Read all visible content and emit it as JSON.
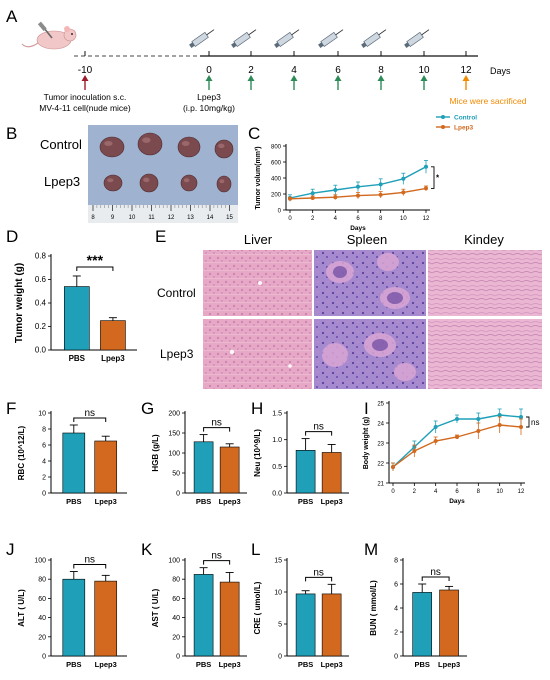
{
  "figure": {
    "colors": {
      "control": "#1f9fb8",
      "lpep3": "#d2691e",
      "pbs_bar": "#1f9fb8",
      "lpep3_bar": "#d2691e",
      "arrow_red": "#9c1c2b",
      "arrow_green": "#2e8b57",
      "arrow_orange": "#f28a00"
    },
    "panels": {
      "A": {
        "letter": "A",
        "days_label": "Days",
        "ticks": [
          "-10",
          "0",
          "2",
          "4",
          "6",
          "8",
          "10",
          "12"
        ],
        "inoculation_note_1": "Tumor inoculation s.c.",
        "inoculation_note_2": "MV-4-11 cell(nude mice)",
        "treatment_note_1": "Lpep3",
        "treatment_note_2": "(i.p. 10mg/kg)",
        "sacrifice_note": "Mice were sacrificed"
      },
      "B": {
        "letter": "B",
        "row1": "Control",
        "row2": "Lpep3",
        "ruler_ticks": [
          "8",
          "9",
          "10",
          "11",
          "12",
          "13",
          "14",
          "15"
        ]
      },
      "C": {
        "letter": "C"
      },
      "D": {
        "letter": "D"
      },
      "E": {
        "letter": "E",
        "col1": "Liver",
        "col2": "Spleen",
        "col3": "Kindey",
        "row1": "Control",
        "row2": "Lpep3"
      },
      "F": {
        "letter": "F"
      },
      "G": {
        "letter": "G"
      },
      "H": {
        "letter": "H"
      },
      "I": {
        "letter": "I"
      },
      "J": {
        "letter": "J"
      },
      "K": {
        "letter": "K"
      },
      "L": {
        "letter": "L"
      },
      "M": {
        "letter": "M"
      }
    }
  },
  "chart_data": [
    {
      "id": "C",
      "type": "line",
      "ylabel": "Tumor volum(mm³)",
      "xlabel": "Days",
      "x": [
        0,
        2,
        4,
        6,
        8,
        10,
        12
      ],
      "ylim": [
        0,
        800
      ],
      "yticks": [
        0,
        200,
        400,
        600,
        800
      ],
      "xticks": [
        0,
        2,
        4,
        6,
        8,
        10,
        12
      ],
      "series": [
        {
          "name": "Control",
          "values": [
            150,
            210,
            250,
            290,
            320,
            390,
            540
          ],
          "err": [
            40,
            50,
            60,
            60,
            70,
            70,
            80
          ]
        },
        {
          "name": "Lpep3",
          "values": [
            140,
            150,
            160,
            180,
            190,
            220,
            270
          ],
          "err": [
            20,
            25,
            30,
            40,
            40,
            40,
            30
          ]
        }
      ],
      "significance": "*"
    },
    {
      "id": "D",
      "type": "bar",
      "ylabel": "Tumor weight (g)",
      "categories": [
        "PBS",
        "Lpep3"
      ],
      "values": [
        0.54,
        0.25
      ],
      "err": [
        0.09,
        0.025
      ],
      "ylim": [
        0,
        0.8
      ],
      "yticks": [
        0.0,
        0.2,
        0.4,
        0.6,
        0.8
      ],
      "significance": "***"
    },
    {
      "id": "F",
      "type": "bar",
      "ylabel": "RBC (10^12/L)",
      "categories": [
        "PBS",
        "Lpep3"
      ],
      "values": [
        7.5,
        6.5
      ],
      "err": [
        1.0,
        0.6
      ],
      "ylim": [
        0,
        10
      ],
      "yticks": [
        0,
        2,
        4,
        6,
        8,
        10
      ],
      "significance": "ns"
    },
    {
      "id": "G",
      "type": "bar",
      "ylabel": "HGB (g/L)",
      "categories": [
        "PBS",
        "Lpep3"
      ],
      "values": [
        128,
        115
      ],
      "err": [
        18,
        8
      ],
      "ylim": [
        0,
        200
      ],
      "yticks": [
        0,
        50,
        100,
        150,
        200
      ],
      "significance": "ns"
    },
    {
      "id": "H",
      "type": "bar",
      "ylabel": "Neu (10^9/L)",
      "categories": [
        "PBS",
        "Lpep3"
      ],
      "values": [
        0.8,
        0.76
      ],
      "err": [
        0.22,
        0.15
      ],
      "ylim": [
        0,
        1.5
      ],
      "yticks": [
        0.0,
        0.5,
        1.0,
        1.5
      ],
      "significance": "ns"
    },
    {
      "id": "I",
      "type": "line",
      "ylabel": "Body weight (g)",
      "xlabel": "Days",
      "x": [
        0,
        2,
        4,
        6,
        8,
        10,
        12
      ],
      "ylim": [
        21,
        25
      ],
      "yticks": [
        21,
        22,
        23,
        24,
        25
      ],
      "xticks": [
        0,
        2,
        4,
        6,
        8,
        10,
        12
      ],
      "series": [
        {
          "name": "Control",
          "values": [
            21.8,
            22.8,
            23.8,
            24.2,
            24.2,
            24.4,
            24.3
          ],
          "err": [
            0.2,
            0.3,
            0.3,
            0.2,
            0.3,
            0.3,
            0.4
          ]
        },
        {
          "name": "Lpep3",
          "values": [
            21.8,
            22.6,
            23.1,
            23.3,
            23.6,
            23.9,
            23.8
          ],
          "err": [
            0.2,
            0.3,
            0.2,
            0.1,
            0.4,
            0.4,
            0.4
          ]
        }
      ],
      "significance": "ns"
    },
    {
      "id": "J",
      "type": "bar",
      "ylabel": "ALT ( U/L)",
      "categories": [
        "PBS",
        "Lpep3"
      ],
      "values": [
        80,
        78
      ],
      "err": [
        8,
        6
      ],
      "ylim": [
        0,
        100
      ],
      "yticks": [
        0,
        20,
        40,
        60,
        80,
        100
      ],
      "significance": "ns"
    },
    {
      "id": "K",
      "type": "bar",
      "ylabel": "AST ( U/L)",
      "categories": [
        "PBS",
        "Lpep3"
      ],
      "values": [
        85,
        77
      ],
      "err": [
        7,
        10
      ],
      "ylim": [
        0,
        100
      ],
      "yticks": [
        0,
        20,
        40,
        60,
        80,
        100
      ],
      "significance": "ns"
    },
    {
      "id": "L",
      "type": "bar",
      "ylabel": "CRE ( umol/L)",
      "categories": [
        "PBS",
        "Lpep3"
      ],
      "values": [
        9.7,
        9.7
      ],
      "err": [
        0.5,
        1.5
      ],
      "ylim": [
        0,
        15
      ],
      "yticks": [
        0,
        5,
        10,
        15
      ],
      "significance": "ns"
    },
    {
      "id": "M",
      "type": "bar",
      "ylabel": "BUN ( mmol/L)",
      "categories": [
        "PBS",
        "Lpep3"
      ],
      "values": [
        5.3,
        5.5
      ],
      "err": [
        0.7,
        0.3
      ],
      "ylim": [
        0,
        8
      ],
      "yticks": [
        0,
        2,
        4,
        6,
        8
      ],
      "significance": "ns"
    }
  ]
}
